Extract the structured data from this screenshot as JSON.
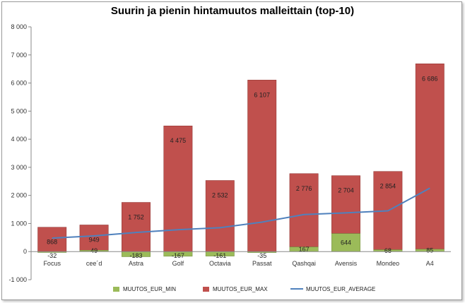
{
  "chart_data": {
    "type": "bar",
    "stacked": true,
    "title": "Suurin ja pienin hintamuutos malleittain (top-10)",
    "categories": [
      "Focus",
      "cee´d",
      "Astra",
      "Golf",
      "Octavia",
      "Passat",
      "Qashqai",
      "Avensis",
      "Mondeo",
      "A4"
    ],
    "series": [
      {
        "name": "MUUTOS_EUR_MIN",
        "type": "bar",
        "color": "#9bbb59",
        "values": [
          -32,
          49,
          -183,
          -167,
          -161,
          -35,
          167,
          644,
          68,
          85
        ],
        "labels": [
          "-32",
          "49",
          "-183",
          "-167",
          "-161",
          "-35",
          "167",
          "644",
          "68",
          "85"
        ]
      },
      {
        "name": "MUUTOS_EUR_MAX",
        "type": "bar",
        "color": "#c0504d",
        "values": [
          868,
          949,
          1752,
          4475,
          2532,
          6107,
          2776,
          2704,
          2854,
          6686
        ],
        "labels": [
          "868",
          "949",
          "1 752",
          "4 475",
          "2 532",
          "6 107",
          "2 776",
          "2 704",
          "2 854",
          "6 686"
        ]
      },
      {
        "name": "MUUTOS_EUR_AVERAGE",
        "type": "line",
        "color": "#4f81bd",
        "values": [
          480,
          560,
          680,
          780,
          850,
          1050,
          1320,
          1380,
          1450,
          2260
        ]
      }
    ],
    "yticks": [
      "-1 000",
      "0",
      "1 000",
      "2 000",
      "3 000",
      "4 000",
      "5 000",
      "6 000",
      "7 000",
      "8 000"
    ],
    "ylim": [
      -1000,
      8000
    ],
    "xlabel": "",
    "ylabel": "",
    "legend_position": "bottom"
  }
}
